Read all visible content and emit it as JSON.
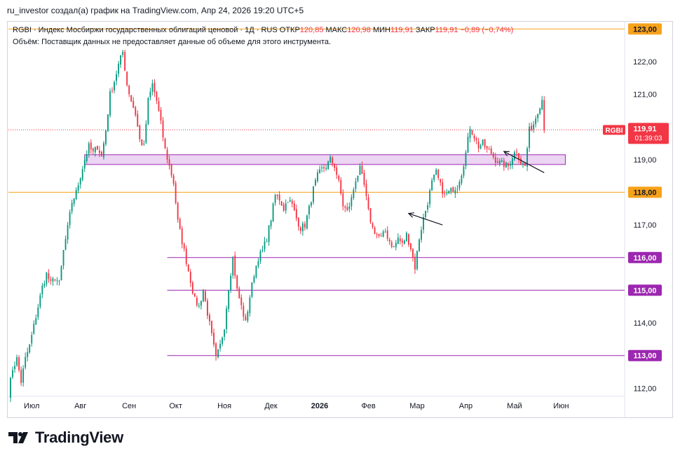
{
  "header": {
    "text": "ru_investor создал(а) график на TradingView.com, Апр 24, 2026 19:20 UTC+5"
  },
  "legend": {
    "symbol_line": "RGBI · Индекс Мосбиржи государственных облигаций ценовой · 1Д · RUS",
    "open_label": "ОТКР",
    "open": "120,85",
    "high_label": "МАКС",
    "high": "120,98",
    "low_label": "МИН",
    "low": "119,91",
    "close_label": "ЗАКР",
    "close": "119,91",
    "change": "−0,89 (−0,74%)",
    "volume_line": "Объём: Поставщик данных не предоставляет данные об объеме для этого инструмента."
  },
  "brand": {
    "name": "TradingView"
  },
  "colors": {
    "up": "#089981",
    "down": "#f23645",
    "orange": "#f7a21b",
    "purple": "#9c27b0",
    "zone_fill": "#e7c9f0",
    "zone_stroke": "#9c27b0"
  },
  "chart_data": {
    "type": "candlestick",
    "symbol": "RGBI",
    "timeframe": "1Д",
    "y_axis": {
      "range": [
        111.75,
        123.2
      ],
      "ticks": [
        112,
        113,
        114,
        115,
        116,
        117,
        118,
        119,
        120,
        121,
        122,
        123
      ],
      "tick_labels": [
        "112,00",
        "113,00",
        "114,00",
        "115,00",
        "116,00",
        "117,00",
        "118,00",
        "119,00",
        "120,00",
        "121,00",
        "122,00",
        "123,00"
      ]
    },
    "x_axis": {
      "range": [
        0,
        290
      ],
      "labels": [
        {
          "t": 11,
          "label": "Июл",
          "bold": false
        },
        {
          "t": 34,
          "label": "Авг",
          "bold": false
        },
        {
          "t": 57,
          "label": "Сен",
          "bold": false
        },
        {
          "t": 79,
          "label": "Окт",
          "bold": false
        },
        {
          "t": 102,
          "label": "Ноя",
          "bold": false
        },
        {
          "t": 124,
          "label": "Дек",
          "bold": false
        },
        {
          "t": 147,
          "label": "2026",
          "bold": true
        },
        {
          "t": 170,
          "label": "Фев",
          "bold": false
        },
        {
          "t": 193,
          "label": "Мар",
          "bold": false
        },
        {
          "t": 216,
          "label": "Апр",
          "bold": false
        },
        {
          "t": 239,
          "label": "Май",
          "bold": false
        },
        {
          "t": 261,
          "label": "Июн",
          "bold": false
        }
      ]
    },
    "last_price": {
      "value": 119.91,
      "label": "119,91",
      "countdown": "01:39:03",
      "tag": "RGBI"
    },
    "hlines": [
      {
        "value": 123.0,
        "label": "123,00",
        "color": "#f7a21b",
        "t_start": 0
      },
      {
        "value": 118.0,
        "label": "118,00",
        "color": "#f7a21b",
        "t_start": 0
      },
      {
        "value": 116.0,
        "label": "116,00",
        "color": "#9c27b0",
        "t_start": 75
      },
      {
        "value": 115.0,
        "label": "115,00",
        "color": "#9c27b0",
        "t_start": 75
      },
      {
        "value": 113.0,
        "label": "113,00",
        "color": "#9c27b0",
        "t_start": 75
      }
    ],
    "zone": {
      "t_start": 36,
      "t_end": 263,
      "y_low": 118.85,
      "y_high": 119.15
    },
    "arrows": [
      {
        "from": [
          253,
          118.6
        ],
        "to": [
          234,
          119.25
        ]
      },
      {
        "from": [
          205,
          117.0
        ],
        "to": [
          189,
          117.35
        ]
      }
    ],
    "anchors": [
      [
        0,
        111.85
      ],
      [
        2,
        112.6
      ],
      [
        4,
        112.9
      ],
      [
        6,
        112.2
      ],
      [
        8,
        112.9
      ],
      [
        10,
        113.3
      ],
      [
        12,
        113.9
      ],
      [
        14,
        114.5
      ],
      [
        16,
        115.1
      ],
      [
        18,
        115.5
      ],
      [
        20,
        115.2
      ],
      [
        22,
        115.4
      ],
      [
        24,
        115.2
      ],
      [
        26,
        116.2
      ],
      [
        28,
        116.9
      ],
      [
        30,
        117.7
      ],
      [
        32,
        118.0
      ],
      [
        34,
        118.5
      ],
      [
        36,
        119.0
      ],
      [
        38,
        119.4
      ],
      [
        40,
        119.2
      ],
      [
        42,
        119.4
      ],
      [
        44,
        119.1
      ],
      [
        46,
        119.9
      ],
      [
        48,
        121.0
      ],
      [
        50,
        121.4
      ],
      [
        52,
        121.9
      ],
      [
        54,
        122.3
      ],
      [
        56,
        121.3
      ],
      [
        58,
        120.8
      ],
      [
        60,
        120.4
      ],
      [
        62,
        119.6
      ],
      [
        64,
        119.4
      ],
      [
        66,
        120.8
      ],
      [
        68,
        121.3
      ],
      [
        70,
        120.8
      ],
      [
        72,
        120.1
      ],
      [
        74,
        119.3
      ],
      [
        76,
        118.8
      ],
      [
        78,
        118.3
      ],
      [
        80,
        117.1
      ],
      [
        82,
        116.5
      ],
      [
        84,
        115.9
      ],
      [
        86,
        115.3
      ],
      [
        88,
        114.7
      ],
      [
        90,
        114.5
      ],
      [
        92,
        115.0
      ],
      [
        94,
        114.3
      ],
      [
        96,
        113.6
      ],
      [
        98,
        112.9
      ],
      [
        100,
        113.3
      ],
      [
        102,
        113.9
      ],
      [
        104,
        115.1
      ],
      [
        106,
        116.0
      ],
      [
        108,
        115.0
      ],
      [
        110,
        114.5
      ],
      [
        112,
        114.0
      ],
      [
        114,
        114.8
      ],
      [
        116,
        115.5
      ],
      [
        118,
        116.0
      ],
      [
        120,
        116.2
      ],
      [
        122,
        116.6
      ],
      [
        124,
        117.2
      ],
      [
        126,
        117.9
      ],
      [
        128,
        117.8
      ],
      [
        130,
        117.5
      ],
      [
        132,
        117.8
      ],
      [
        134,
        117.6
      ],
      [
        136,
        117.2
      ],
      [
        138,
        116.9
      ],
      [
        140,
        117.0
      ],
      [
        142,
        117.5
      ],
      [
        144,
        118.1
      ],
      [
        146,
        118.5
      ],
      [
        148,
        118.7
      ],
      [
        150,
        118.8
      ],
      [
        152,
        119.0
      ],
      [
        154,
        118.8
      ],
      [
        156,
        118.3
      ],
      [
        158,
        117.6
      ],
      [
        160,
        117.4
      ],
      [
        162,
        117.8
      ],
      [
        164,
        118.4
      ],
      [
        166,
        118.7
      ],
      [
        168,
        118.2
      ],
      [
        170,
        117.4
      ],
      [
        172,
        116.9
      ],
      [
        174,
        116.7
      ],
      [
        176,
        116.6
      ],
      [
        178,
        116.8
      ],
      [
        180,
        116.5
      ],
      [
        182,
        116.3
      ],
      [
        184,
        116.6
      ],
      [
        186,
        116.4
      ],
      [
        188,
        116.7
      ],
      [
        190,
        116.3
      ],
      [
        192,
        115.7
      ],
      [
        194,
        116.6
      ],
      [
        196,
        117.2
      ],
      [
        198,
        117.7
      ],
      [
        200,
        118.3
      ],
      [
        202,
        118.6
      ],
      [
        204,
        118.2
      ],
      [
        206,
        117.9
      ],
      [
        208,
        118.0
      ],
      [
        210,
        118.1
      ],
      [
        212,
        118.2
      ],
      [
        214,
        118.6
      ],
      [
        216,
        119.2
      ],
      [
        218,
        120.0
      ],
      [
        220,
        119.7
      ],
      [
        222,
        119.4
      ],
      [
        224,
        119.5
      ],
      [
        226,
        119.3
      ],
      [
        228,
        119.2
      ],
      [
        230,
        119.0
      ],
      [
        232,
        118.9
      ],
      [
        234,
        118.85
      ],
      [
        236,
        118.8
      ],
      [
        238,
        119.1
      ],
      [
        240,
        119.3
      ],
      [
        242,
        118.9
      ],
      [
        244,
        118.8
      ],
      [
        246,
        119.9
      ],
      [
        248,
        120.1
      ],
      [
        250,
        120.5
      ],
      [
        252,
        120.85
      ],
      [
        253,
        119.91
      ]
    ]
  }
}
